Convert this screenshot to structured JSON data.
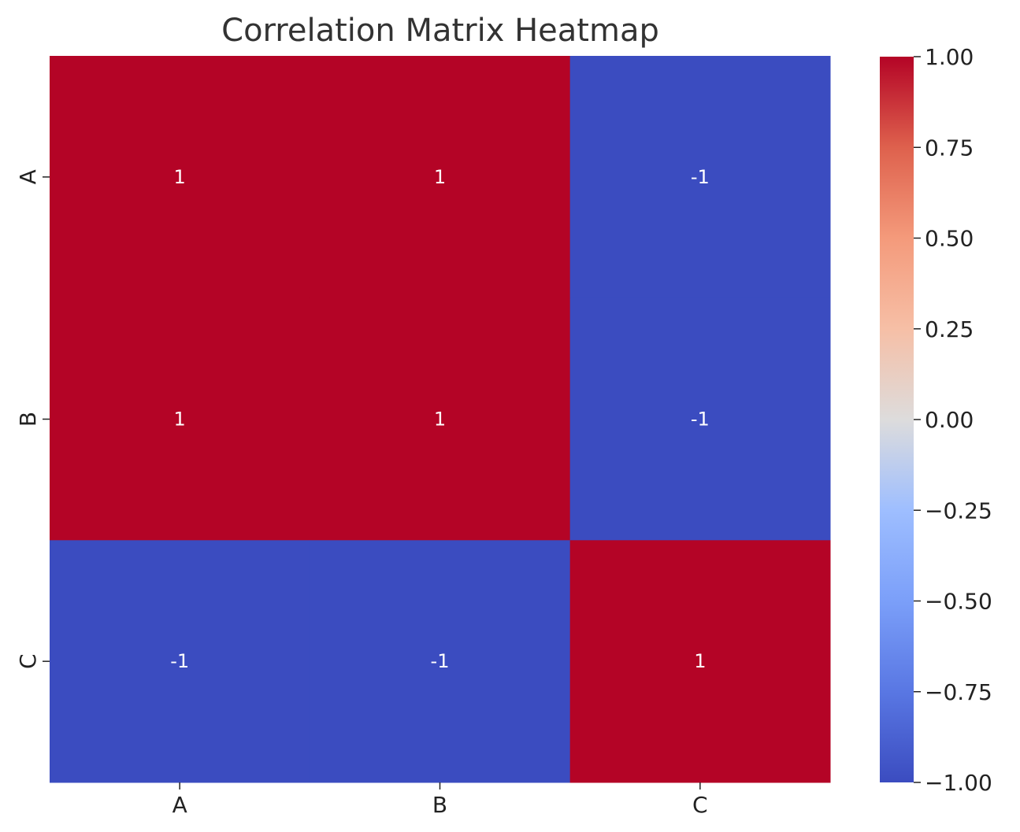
{
  "chart_data": {
    "type": "heatmap",
    "title": "Correlation Matrix Heatmap",
    "rows": [
      "A",
      "B",
      "C"
    ],
    "columns": [
      "A",
      "B",
      "C"
    ],
    "values": [
      [
        1,
        1,
        -1
      ],
      [
        1,
        1,
        -1
      ],
      [
        -1,
        -1,
        1
      ]
    ],
    "annotations": [
      [
        "1",
        "1",
        "-1"
      ],
      [
        "1",
        "1",
        "-1"
      ],
      [
        "-1",
        "-1",
        "1"
      ]
    ],
    "colormap": "coolwarm",
    "colors": {
      "high": "#b40426",
      "low": "#3b4cc0"
    },
    "value_range": [
      -1.0,
      1.0
    ],
    "colorbar": {
      "ticks": [
        1.0,
        0.75,
        0.5,
        0.25,
        0.0,
        -0.25,
        -0.5,
        -0.75,
        -1.0
      ],
      "tick_labels": [
        "1.00",
        "0.75",
        "0.50",
        "0.25",
        "0.00",
        "−0.25",
        "−0.50",
        "−0.75",
        "−1.00"
      ]
    },
    "grid": false,
    "legend": "colorbar-right"
  }
}
